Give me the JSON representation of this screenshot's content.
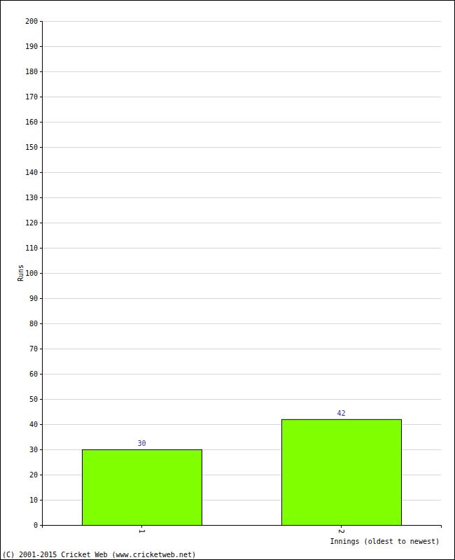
{
  "chart_data": {
    "type": "bar",
    "categories": [
      "1",
      "2"
    ],
    "values": [
      30,
      42
    ],
    "color": "#7fff00",
    "ylim": [
      0,
      200
    ],
    "yticks": [
      0,
      10,
      20,
      30,
      40,
      50,
      60,
      70,
      80,
      90,
      100,
      110,
      120,
      130,
      140,
      150,
      160,
      170,
      180,
      190,
      200
    ],
    "grid": true,
    "data_labels": true,
    "x_label": "Innings (oldest to newest)",
    "y_label": "Runs",
    "annotations": [
      "(C) 2001-2015 Cricket Web (www.cricketweb.net)"
    ]
  }
}
